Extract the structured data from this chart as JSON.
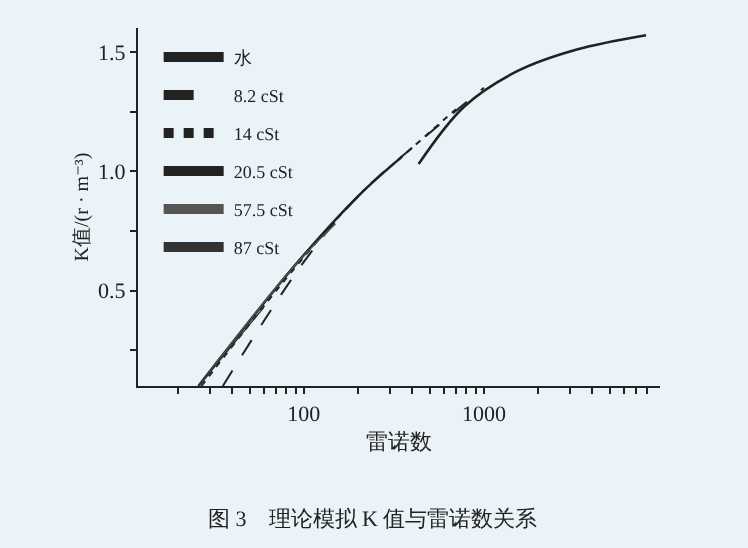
{
  "chart_data": {
    "type": "line",
    "xlabel": "雷诺数",
    "ylabel": "K值/(r · m⁻³)",
    "log": "x",
    "grid": false,
    "legend": "top left",
    "marker": "none",
    "xlim": [
      12,
      9500
    ],
    "ylim": [
      0.1,
      1.6
    ],
    "xticks": [
      {
        "value": 20,
        "label": null
      },
      {
        "value": 30,
        "label": null
      },
      {
        "value": 40,
        "label": null
      },
      {
        "value": 50,
        "label": null
      },
      {
        "value": 60,
        "label": null
      },
      {
        "value": 70,
        "label": null
      },
      {
        "value": 80,
        "label": null
      },
      {
        "value": 90,
        "label": null
      },
      100,
      {
        "value": 200,
        "label": null
      },
      {
        "value": 300,
        "label": null
      },
      {
        "value": 400,
        "label": null
      },
      {
        "value": 500,
        "label": null
      },
      {
        "value": 600,
        "label": null
      },
      {
        "value": 700,
        "label": null
      },
      {
        "value": 800,
        "label": null
      },
      {
        "value": 900,
        "label": null
      },
      1000,
      {
        "value": 2000,
        "label": null
      },
      {
        "value": 3000,
        "label": null
      },
      {
        "value": 4000,
        "label": null
      },
      {
        "value": 5000,
        "label": null
      },
      {
        "value": 6000,
        "label": null
      },
      {
        "value": 7000,
        "label": null
      },
      {
        "value": 8000,
        "label": null
      }
    ],
    "yticks": [
      {
        "value": 0.25,
        "label": null
      },
      0.5,
      {
        "value": 0.75,
        "label": null
      },
      {
        "value": 1,
        "label": "1.0"
      },
      {
        "value": 1.25,
        "label": null
      },
      1.5
    ],
    "annotations": [
      "图 3　理论模拟 K 值与雷诺数关系"
    ],
    "series": [
      {
        "name": "水",
        "color": "#222222",
        "line_style": "solid",
        "x": [
          434,
          776,
          1540,
          3280,
          7950
        ],
        "values": [
          1.03,
          1.27,
          1.42,
          1.51,
          1.57
        ]
      },
      {
        "name": "8.2 cSt",
        "color": "#222222",
        "line_style": "dashed",
        "x": [
          35.5,
          100,
          203,
          402,
          1000
        ],
        "values": [
          0.1,
          0.62,
          0.9,
          1.1,
          1.35
        ]
      },
      {
        "name": "14 cSt",
        "color": "#222222",
        "line_style": "dotted",
        "x": [
          27,
          88,
          203,
          402,
          700
        ],
        "values": [
          0.1,
          0.59,
          0.9,
          1.1,
          1.26
        ]
      },
      {
        "name": "20.5 cSt",
        "color": "#222222",
        "line_style": "solid",
        "x": [
          26,
          88,
          203,
          350
        ],
        "values": [
          0.1,
          0.6,
          0.9,
          1.06
        ]
      },
      {
        "name": "57.5 cSt",
        "color": "#555555",
        "line_style": "solid",
        "x": [
          26,
          88,
          150
        ],
        "values": [
          0.1,
          0.6,
          0.78
        ]
      },
      {
        "name": "87 cSt",
        "color": "#333333",
        "line_style": "solid",
        "x": [
          26,
          60
        ],
        "values": [
          0.1,
          0.43
        ]
      }
    ]
  }
}
